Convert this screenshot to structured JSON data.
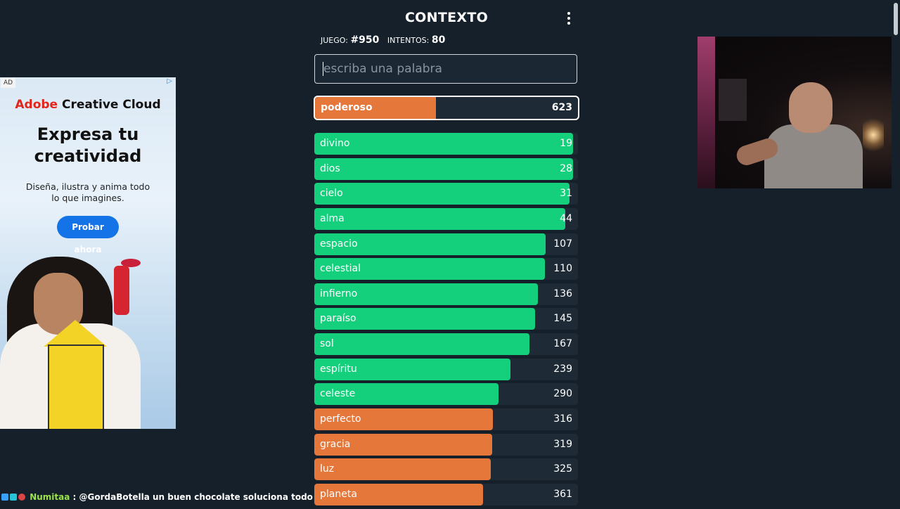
{
  "header": {
    "title": "CONTEXTO"
  },
  "stats": {
    "game_label": "JUEGO:",
    "game_value": "#950",
    "attempts_label": "INTENTOS:",
    "attempts_value": "80"
  },
  "search": {
    "placeholder": "escriba una palabra",
    "value": ""
  },
  "current_guess": {
    "word": "poderoso",
    "rank": "623",
    "fill_fraction": 0.46,
    "color": "#e5773b"
  },
  "guesses": [
    {
      "word": "divino",
      "rank": "19",
      "fill_fraction": 0.982,
      "color": "#14d07c"
    },
    {
      "word": "dios",
      "rank": "28",
      "fill_fraction": 0.982,
      "color": "#14d07c"
    },
    {
      "word": "cielo",
      "rank": "31",
      "fill_fraction": 0.968,
      "color": "#14d07c"
    },
    {
      "word": "alma",
      "rank": "44",
      "fill_fraction": 0.952,
      "color": "#14d07c"
    },
    {
      "word": "espacio",
      "rank": "107",
      "fill_fraction": 0.878,
      "color": "#14d07c"
    },
    {
      "word": "celestial",
      "rank": "110",
      "fill_fraction": 0.875,
      "color": "#14d07c"
    },
    {
      "word": "infierno",
      "rank": "136",
      "fill_fraction": 0.848,
      "color": "#14d07c"
    },
    {
      "word": "paraíso",
      "rank": "145",
      "fill_fraction": 0.838,
      "color": "#14d07c"
    },
    {
      "word": "sol",
      "rank": "167",
      "fill_fraction": 0.816,
      "color": "#14d07c"
    },
    {
      "word": "espíritu",
      "rank": "239",
      "fill_fraction": 0.744,
      "color": "#14d07c"
    },
    {
      "word": "celeste",
      "rank": "290",
      "fill_fraction": 0.699,
      "color": "#14d07c"
    },
    {
      "word": "perfecto",
      "rank": "316",
      "fill_fraction": 0.678,
      "color": "#e5773b"
    },
    {
      "word": "gracia",
      "rank": "319",
      "fill_fraction": 0.675,
      "color": "#e5773b"
    },
    {
      "word": "luz",
      "rank": "325",
      "fill_fraction": 0.67,
      "color": "#e5773b"
    },
    {
      "word": "planeta",
      "rank": "361",
      "fill_fraction": 0.64,
      "color": "#e5773b"
    }
  ],
  "ad": {
    "tag": "AD",
    "brand_prefix": "Adobe",
    "brand_name": "Creative Cloud",
    "headline_line1": "Expresa tu",
    "headline_line2": "creatividad",
    "sub_line1": "Diseña, ilustra y anima todo",
    "sub_line2": "lo que imagines.",
    "cta": "Probar ahora"
  },
  "chat": {
    "user": "Numitaa",
    "separator": ":",
    "message": "@GordaBotella un buen chocolate soluciona todo"
  }
}
